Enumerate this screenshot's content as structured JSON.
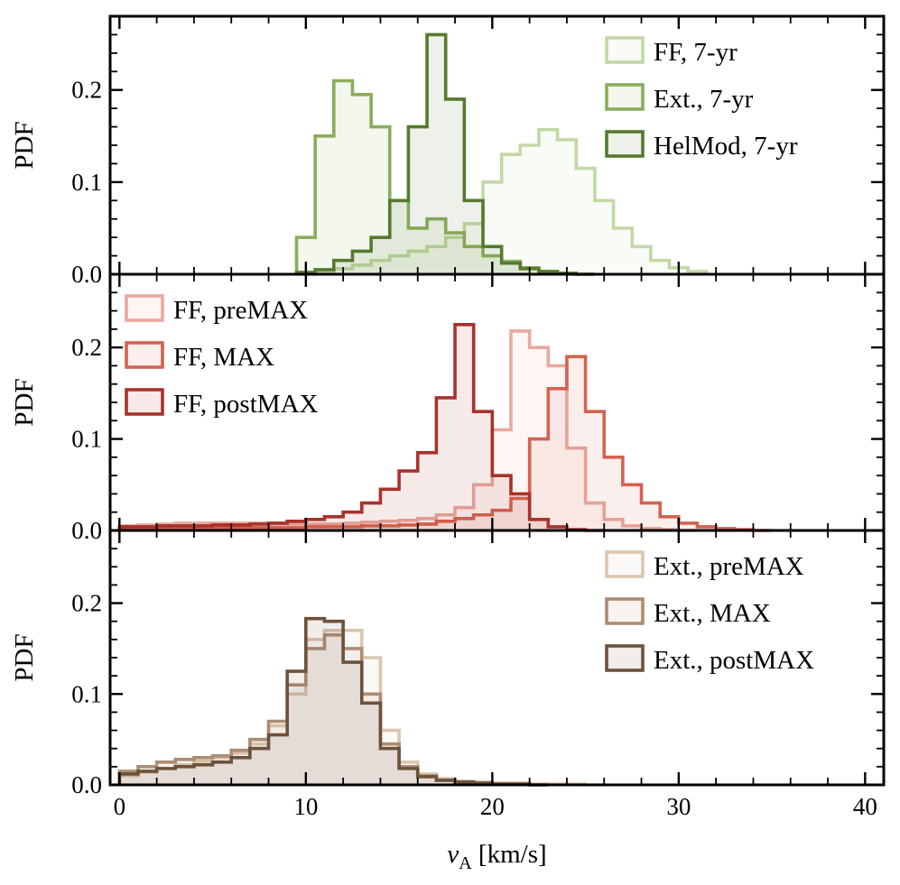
{
  "chart_data": [
    {
      "type": "histogram",
      "panel": "top",
      "ylabel": "PDF",
      "xlim": [
        -0.5,
        41
      ],
      "ylim": [
        0,
        0.28
      ],
      "yticks": [
        "0.0",
        "0.1",
        "0.2"
      ],
      "legend_position": "top-right",
      "bin_edges_start": 9.5,
      "bin_width": 1,
      "series": [
        {
          "name": "FF, 7-yr",
          "color": "#c2d8a6",
          "values": [
            0.0,
            0.003,
            0.006,
            0.01,
            0.015,
            0.02,
            0.025,
            0.03,
            0.04,
            0.055,
            0.1,
            0.13,
            0.14,
            0.157,
            0.146,
            0.115,
            0.08,
            0.05,
            0.03,
            0.015,
            0.007,
            0.003
          ]
        },
        {
          "name": "Ext., 7-yr",
          "color": "#8aad5c",
          "values": [
            0.04,
            0.15,
            0.21,
            0.195,
            0.16,
            0.08,
            0.05,
            0.06,
            0.045,
            0.03,
            0.02,
            0.014,
            0.007,
            0.003,
            0.001,
            0.0
          ]
        },
        {
          "name": "HelMod, 7-yr",
          "color": "#557a2d",
          "values": [
            0.002,
            0.005,
            0.015,
            0.025,
            0.04,
            0.08,
            0.16,
            0.26,
            0.19,
            0.08,
            0.03,
            0.012,
            0.006,
            0.003,
            0.001,
            0.0
          ]
        }
      ]
    },
    {
      "type": "histogram",
      "panel": "middle",
      "ylabel": "PDF",
      "xlim": [
        -0.5,
        41
      ],
      "ylim": [
        0,
        0.28
      ],
      "yticks": [
        "0.0",
        "0.1",
        "0.2"
      ],
      "legend_position": "top-left",
      "bin_edges_start": 0,
      "bin_width": 1,
      "series": [
        {
          "name": "FF, preMAX",
          "color": "#e8a9a0",
          "values": [
            0.005,
            0.006,
            0.007,
            0.008,
            0.008,
            0.008,
            0.008,
            0.008,
            0.007,
            0.007,
            0.007,
            0.007,
            0.008,
            0.009,
            0.01,
            0.011,
            0.013,
            0.017,
            0.025,
            0.05,
            0.11,
            0.218,
            0.2,
            0.18,
            0.09,
            0.03,
            0.012,
            0.005,
            0.002,
            0.001,
            0.0
          ]
        },
        {
          "name": "FF, MAX",
          "color": "#d4624f",
          "values": [
            0.003,
            0.003,
            0.003,
            0.003,
            0.003,
            0.003,
            0.003,
            0.003,
            0.003,
            0.003,
            0.004,
            0.004,
            0.004,
            0.005,
            0.005,
            0.006,
            0.007,
            0.01,
            0.013,
            0.017,
            0.022,
            0.035,
            0.1,
            0.155,
            0.19,
            0.13,
            0.08,
            0.05,
            0.03,
            0.015,
            0.008,
            0.004,
            0.002,
            0.001,
            0.0
          ]
        },
        {
          "name": "FF, postMAX",
          "color": "#a8322a",
          "values": [
            0.004,
            0.004,
            0.005,
            0.005,
            0.005,
            0.006,
            0.006,
            0.007,
            0.008,
            0.01,
            0.012,
            0.015,
            0.02,
            0.03,
            0.045,
            0.065,
            0.085,
            0.145,
            0.225,
            0.13,
            0.06,
            0.04,
            0.012,
            0.004,
            0.001,
            0.0
          ]
        }
      ]
    },
    {
      "type": "histogram",
      "panel": "bottom",
      "ylabel": "PDF",
      "xlabel": "v_A [km/s]",
      "xlim": [
        -0.5,
        41
      ],
      "ylim": [
        0,
        0.28
      ],
      "yticks": [
        "0.0",
        "0.1",
        "0.2"
      ],
      "xticks": [
        "0",
        "10",
        "20",
        "30",
        "40"
      ],
      "xtick_values": [
        0,
        10,
        20,
        30,
        40
      ],
      "legend_position": "top-right",
      "bin_edges_start": 0,
      "bin_width": 1,
      "series": [
        {
          "name": "Ext., preMAX",
          "color": "#dcc6af",
          "values": [
            0.01,
            0.014,
            0.018,
            0.022,
            0.026,
            0.03,
            0.035,
            0.045,
            0.065,
            0.1,
            0.16,
            0.17,
            0.17,
            0.14,
            0.06,
            0.025,
            0.012,
            0.007,
            0.004,
            0.003,
            0.002,
            0.002,
            0.001,
            0.001,
            0.001,
            0.0
          ]
        },
        {
          "name": "Ext., MAX",
          "color": "#ad8c72",
          "values": [
            0.015,
            0.02,
            0.025,
            0.028,
            0.03,
            0.032,
            0.038,
            0.05,
            0.07,
            0.11,
            0.15,
            0.165,
            0.15,
            0.1,
            0.045,
            0.02,
            0.01,
            0.005,
            0.003,
            0.002,
            0.001,
            0.001,
            0.0
          ]
        },
        {
          "name": "Ext., postMAX",
          "color": "#6d523b",
          "values": [
            0.012,
            0.015,
            0.018,
            0.02,
            0.022,
            0.025,
            0.03,
            0.04,
            0.055,
            0.125,
            0.183,
            0.18,
            0.135,
            0.09,
            0.04,
            0.018,
            0.009,
            0.005,
            0.003,
            0.002,
            0.001,
            0.001,
            0.0
          ]
        }
      ]
    }
  ]
}
